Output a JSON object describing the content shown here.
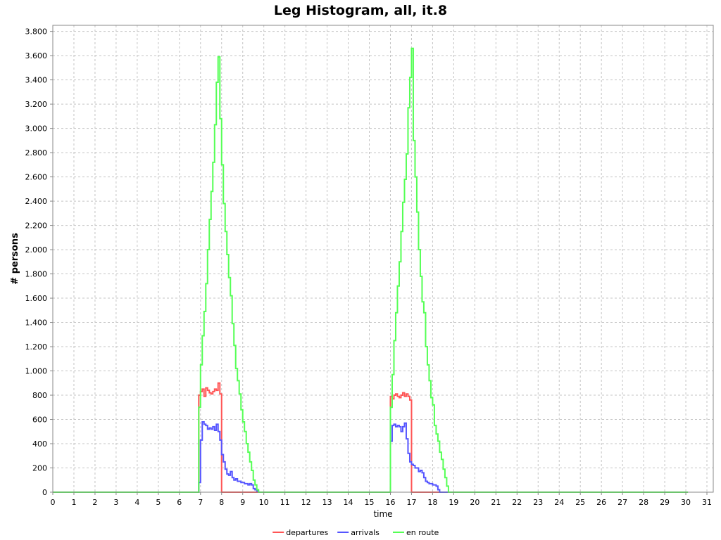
{
  "chart_data": {
    "type": "line",
    "title": "Leg Histogram, all, it.8",
    "xlabel": "time",
    "ylabel": "# persons",
    "xlim": [
      0,
      31.3
    ],
    "ylim": [
      0,
      3850
    ],
    "x_ticks": [
      "0",
      "1",
      "2",
      "3",
      "4",
      "5",
      "6",
      "7",
      "8",
      "9",
      "10",
      "11",
      "12",
      "13",
      "14",
      "15",
      "16",
      "17",
      "18",
      "19",
      "20",
      "21",
      "22",
      "23",
      "24",
      "25",
      "26",
      "27",
      "28",
      "29",
      "30",
      "31"
    ],
    "y_ticks": [
      {
        "v": 0,
        "label": "0"
      },
      {
        "v": 200,
        "label": "200"
      },
      {
        "v": 400,
        "label": "400"
      },
      {
        "v": 600,
        "label": "600"
      },
      {
        "v": 800,
        "label": "800"
      },
      {
        "v": 1000,
        "label": "1.000"
      },
      {
        "v": 1200,
        "label": "1.200"
      },
      {
        "v": 1400,
        "label": "1.400"
      },
      {
        "v": 1600,
        "label": "1.600"
      },
      {
        "v": 1800,
        "label": "1.800"
      },
      {
        "v": 2000,
        "label": "2.000"
      },
      {
        "v": 2200,
        "label": "2.200"
      },
      {
        "v": 2400,
        "label": "2.400"
      },
      {
        "v": 2600,
        "label": "2.600"
      },
      {
        "v": 2800,
        "label": "2.800"
      },
      {
        "v": 3000,
        "label": "3.000"
      },
      {
        "v": 3200,
        "label": "3.200"
      },
      {
        "v": 3400,
        "label": "3.400"
      },
      {
        "v": 3600,
        "label": "3.600"
      },
      {
        "v": 3800,
        "label": "3.800"
      }
    ],
    "grid": true,
    "legend_position": "bottom-center",
    "series": [
      {
        "name": "departures",
        "color": "#ff5555",
        "step": true,
        "x": [
          0,
          6.917,
          7.0,
          7.083,
          7.167,
          7.25,
          7.333,
          7.417,
          7.5,
          7.583,
          7.667,
          7.75,
          7.833,
          7.917,
          8.0,
          15.917,
          16.0,
          16.083,
          16.167,
          16.25,
          16.333,
          16.417,
          16.5,
          16.583,
          16.667,
          16.75,
          16.833,
          16.917,
          17.0,
          30.1
        ],
        "y": [
          0,
          800,
          830,
          850,
          790,
          860,
          840,
          820,
          810,
          830,
          850,
          840,
          900,
          810,
          0,
          0,
          790,
          770,
          800,
          810,
          790,
          780,
          800,
          820,
          790,
          810,
          790,
          760,
          0,
          0
        ]
      },
      {
        "name": "arrivals",
        "color": "#5555ff",
        "step": true,
        "x": [
          0,
          6.917,
          7.0,
          7.083,
          7.167,
          7.25,
          7.333,
          7.417,
          7.5,
          7.583,
          7.667,
          7.75,
          7.833,
          7.917,
          8.0,
          8.083,
          8.167,
          8.25,
          8.333,
          8.417,
          8.5,
          8.583,
          8.667,
          8.75,
          8.833,
          8.917,
          9.0,
          9.083,
          9.167,
          9.25,
          9.333,
          9.417,
          9.5,
          9.583,
          9.667,
          9.75,
          9.833,
          9.917,
          10.0,
          10.083,
          15.917,
          16.0,
          16.083,
          16.167,
          16.25,
          16.333,
          16.417,
          16.5,
          16.583,
          16.667,
          16.75,
          16.833,
          16.917,
          17.0,
          17.083,
          17.167,
          17.25,
          17.333,
          17.417,
          17.5,
          17.583,
          17.667,
          17.75,
          17.833,
          17.917,
          18.0,
          18.083,
          18.167,
          18.25,
          18.333,
          18.417,
          18.5,
          18.583,
          18.667,
          18.75,
          18.833,
          18.917,
          30.1
        ],
        "y": [
          0,
          80,
          430,
          580,
          560,
          550,
          520,
          530,
          520,
          540,
          510,
          560,
          500,
          430,
          310,
          250,
          190,
          150,
          140,
          170,
          120,
          100,
          110,
          90,
          90,
          80,
          80,
          70,
          70,
          60,
          70,
          60,
          30,
          20,
          10,
          0,
          0,
          0,
          0,
          0,
          0,
          420,
          550,
          560,
          540,
          550,
          540,
          500,
          540,
          570,
          440,
          320,
          250,
          230,
          220,
          200,
          200,
          170,
          180,
          160,
          120,
          90,
          80,
          70,
          70,
          60,
          60,
          50,
          20,
          0,
          0,
          0,
          0,
          0,
          0,
          0,
          0,
          0
        ]
      },
      {
        "name": "en route",
        "color": "#55ff55",
        "step": true,
        "x": [
          0,
          6.917,
          7.0,
          7.083,
          7.167,
          7.25,
          7.333,
          7.417,
          7.5,
          7.583,
          7.667,
          7.75,
          7.833,
          7.917,
          8.0,
          8.083,
          8.167,
          8.25,
          8.333,
          8.417,
          8.5,
          8.583,
          8.667,
          8.75,
          8.833,
          8.917,
          9.0,
          9.083,
          9.167,
          9.25,
          9.333,
          9.417,
          9.5,
          9.583,
          9.667,
          9.75,
          9.833,
          9.917,
          10.0,
          10.083,
          15.917,
          16.0,
          16.083,
          16.167,
          16.25,
          16.333,
          16.417,
          16.5,
          16.583,
          16.667,
          16.75,
          16.833,
          16.917,
          17.0,
          17.083,
          17.167,
          17.25,
          17.333,
          17.417,
          17.5,
          17.583,
          17.667,
          17.75,
          17.833,
          17.917,
          18.0,
          18.083,
          18.167,
          18.25,
          18.333,
          18.417,
          18.5,
          18.583,
          18.667,
          18.75,
          18.833,
          18.917,
          30.1
        ],
        "y": [
          0,
          700,
          1050,
          1290,
          1490,
          1720,
          2000,
          2250,
          2480,
          2720,
          3030,
          3380,
          3590,
          3080,
          2700,
          2380,
          2150,
          1960,
          1770,
          1620,
          1390,
          1210,
          1020,
          920,
          810,
          680,
          580,
          500,
          400,
          330,
          250,
          180,
          100,
          60,
          20,
          0,
          0,
          0,
          0,
          0,
          0,
          700,
          970,
          1250,
          1480,
          1700,
          1900,
          2150,
          2390,
          2580,
          2790,
          3170,
          3420,
          3660,
          2900,
          2600,
          2310,
          2000,
          1780,
          1570,
          1480,
          1200,
          1050,
          920,
          780,
          720,
          550,
          480,
          420,
          330,
          270,
          190,
          120,
          50,
          0,
          0,
          0,
          0
        ]
      }
    ]
  }
}
